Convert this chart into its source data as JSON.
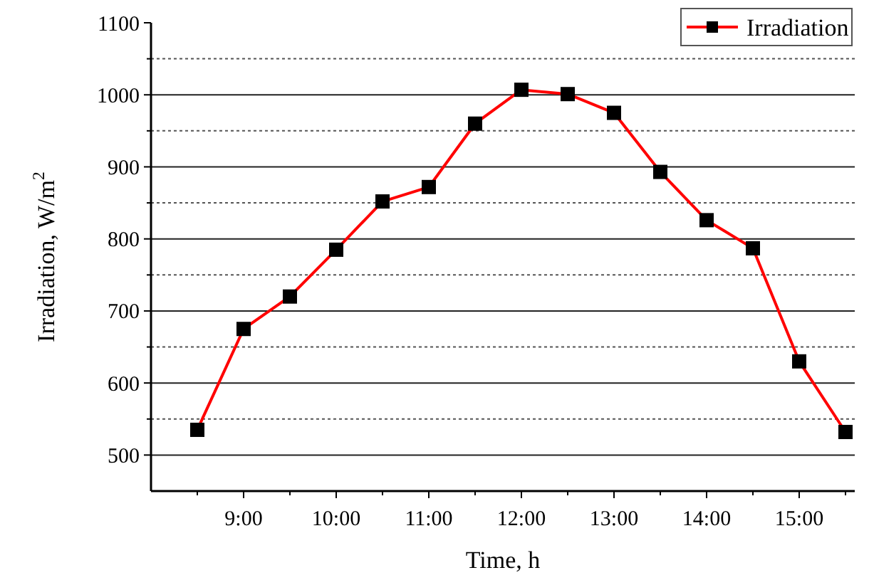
{
  "chart_data": {
    "type": "line",
    "xlabel": "Time, h",
    "ylabel": "Irradiation, W/m$^{2}$",
    "x": [
      8.5,
      9,
      9.5,
      10,
      10.5,
      11,
      11.5,
      12,
      12.5,
      13,
      13.5,
      14,
      14.5,
      15,
      15.5
    ],
    "series": [
      {
        "name": "Irradiation",
        "color": "#ff0000",
        "values": [
          535,
          675,
          720,
          785,
          852,
          872,
          960,
          1007,
          1001,
          975,
          893,
          826,
          787,
          630,
          532
        ]
      }
    ],
    "xlim": [
      8,
      15.6
    ],
    "xticks": [
      {
        "value": 8.5,
        "label": null
      },
      {
        "value": 9,
        "label": "9:00"
      },
      {
        "value": 9.5,
        "label": null
      },
      {
        "value": 10,
        "label": "10:00"
      },
      {
        "value": 10.5,
        "label": null
      },
      {
        "value": 11,
        "label": "11:00"
      },
      {
        "value": 11.5,
        "label": null
      },
      {
        "value": 12,
        "label": "12:00"
      },
      {
        "value": 12.5,
        "label": null
      },
      {
        "value": 13,
        "label": "13:00"
      },
      {
        "value": 13.5,
        "label": null
      },
      {
        "value": 14,
        "label": "14:00"
      },
      {
        "value": 14.5,
        "label": null
      },
      {
        "value": 15,
        "label": "15:00"
      },
      {
        "value": 15.5,
        "label": null
      }
    ],
    "ylim": [
      450,
      1100
    ],
    "yticks": [
      500,
      {
        "value": 550,
        "label": null
      },
      600,
      {
        "value": 650,
        "label": null
      },
      700,
      {
        "value": 750,
        "label": null
      },
      800,
      {
        "value": 850,
        "label": null
      },
      900,
      {
        "value": 950,
        "label": null
      },
      1000,
      {
        "value": 1050,
        "label": null
      },
      1100
    ],
    "grid": "y",
    "legend": "top right",
    "marker": "square",
    "line_style": "solid"
  }
}
